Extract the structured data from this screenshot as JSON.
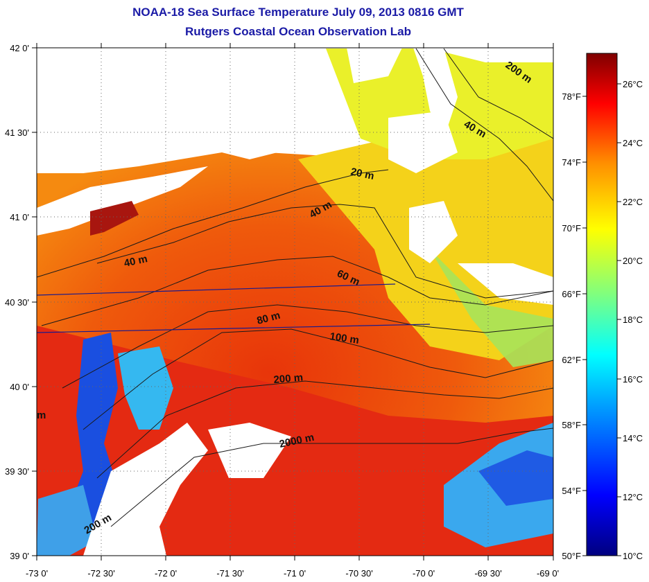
{
  "title": "NOAA-18 Sea Surface Temperature July 09, 2013 0816 GMT",
  "subtitle": "Rutgers Coastal Ocean Observation Lab",
  "x_ticks": [
    "-73 0'",
    "-72 30'",
    "-72 0'",
    "-71 30'",
    "-71 0'",
    "-70 30'",
    "-70 0'",
    "-69 30'",
    "-69 0'"
  ],
  "y_ticks": [
    "42 0'",
    "41 30'",
    "41 0'",
    "40 30'",
    "40 0'",
    "39 30'",
    "39 0'"
  ],
  "colorbar": {
    "celsius_labels": [
      "26°C",
      "24°C",
      "22°C",
      "20°C",
      "18°C",
      "16°C",
      "14°C",
      "12°C",
      "10°C"
    ],
    "fahrenheit_labels": [
      "78°F",
      "74°F",
      "70°F",
      "66°F",
      "62°F",
      "58°F",
      "54°F",
      "50°F"
    ],
    "colors": [
      "#00007f",
      "#0000ff",
      "#00a0ff",
      "#00ffff",
      "#7fff7f",
      "#ffff00",
      "#ff9000",
      "#ff0000",
      "#7f0000"
    ]
  },
  "contour_labels": [
    "200 m",
    "40 m",
    "20 m",
    "40 m",
    "40 m",
    "60 m",
    "80 m",
    "100 m",
    "200 m",
    "2000 m",
    "200 m",
    "m"
  ]
}
